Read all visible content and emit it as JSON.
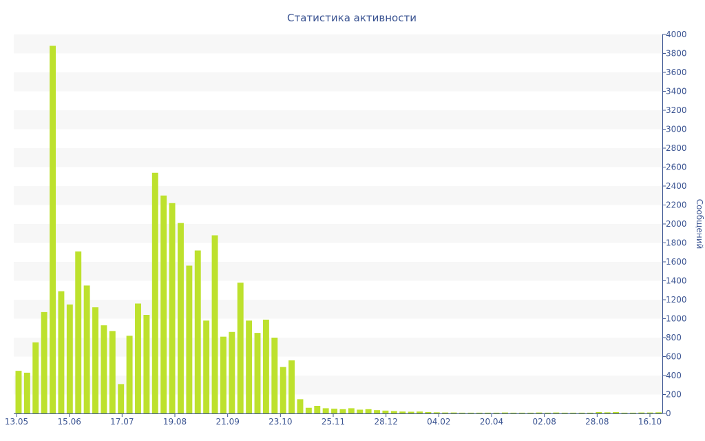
{
  "chart_data": {
    "type": "bar",
    "title": "Статистика активности",
    "ylabel": "Сообщений",
    "ylim": [
      0,
      4000
    ],
    "yticks": [
      0,
      200,
      400,
      600,
      800,
      1000,
      1200,
      1400,
      1600,
      1800,
      2000,
      2200,
      2400,
      2600,
      2800,
      3000,
      3200,
      3400,
      3600,
      3800,
      4000
    ],
    "x_tick_labels": [
      "13.05",
      "15.06",
      "17.07",
      "19.08",
      "21.09",
      "23.10",
      "25.11",
      "28.12",
      "04.02",
      "20.04",
      "02.08",
      "28.08",
      "16.10"
    ],
    "y_axis_position": "right",
    "grid": "alternating horizontal bands",
    "bar_color": "#bde12d",
    "band_color": "#f7f7f7",
    "text_color": "#3b5492",
    "values": [
      450,
      430,
      750,
      1070,
      3880,
      1290,
      1150,
      1710,
      1350,
      1120,
      930,
      870,
      310,
      820,
      1160,
      1040,
      2540,
      2300,
      2220,
      2010,
      1560,
      1720,
      980,
      1880,
      810,
      860,
      1380,
      980,
      850,
      990,
      800,
      490,
      560,
      150,
      60,
      80,
      55,
      50,
      45,
      55,
      40,
      45,
      35,
      30,
      25,
      20,
      18,
      20,
      15,
      12,
      10,
      10,
      8,
      8,
      8,
      8,
      8,
      10,
      8,
      8,
      8,
      10,
      8,
      10,
      8,
      8,
      8,
      8,
      15,
      12,
      15,
      8,
      8,
      10,
      10,
      12
    ]
  }
}
